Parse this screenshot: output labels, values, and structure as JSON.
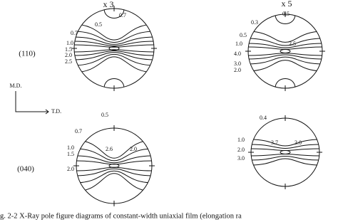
{
  "column_headers": [
    "x 3",
    "x 5"
  ],
  "row_labels": [
    "(110)",
    "(040)"
  ],
  "axes": {
    "vertical": "M.D.",
    "horizontal": "T.D."
  },
  "diagrams": [
    {
      "labels": [
        "0.5",
        "0.7",
        "0.7",
        "1.0",
        "1.5",
        "2.0",
        "2.5"
      ]
    },
    {
      "labels": [
        "0.3",
        "0.5",
        "0.5",
        "1.0",
        "4.0",
        "2.5",
        "3.0",
        "2.0"
      ]
    },
    {
      "labels": [
        "0.5",
        "0.7",
        "1.0",
        "1.5",
        "2.0",
        "2.6",
        "2.0"
      ]
    },
    {
      "labels": [
        "0.4",
        "1.0",
        "2.0",
        "3.0",
        "3.7",
        "3.0"
      ]
    }
  ],
  "caption": "g. 2-2  X-Ray pole figure diagrams of constant-width uniaxial film (elongation ra"
}
